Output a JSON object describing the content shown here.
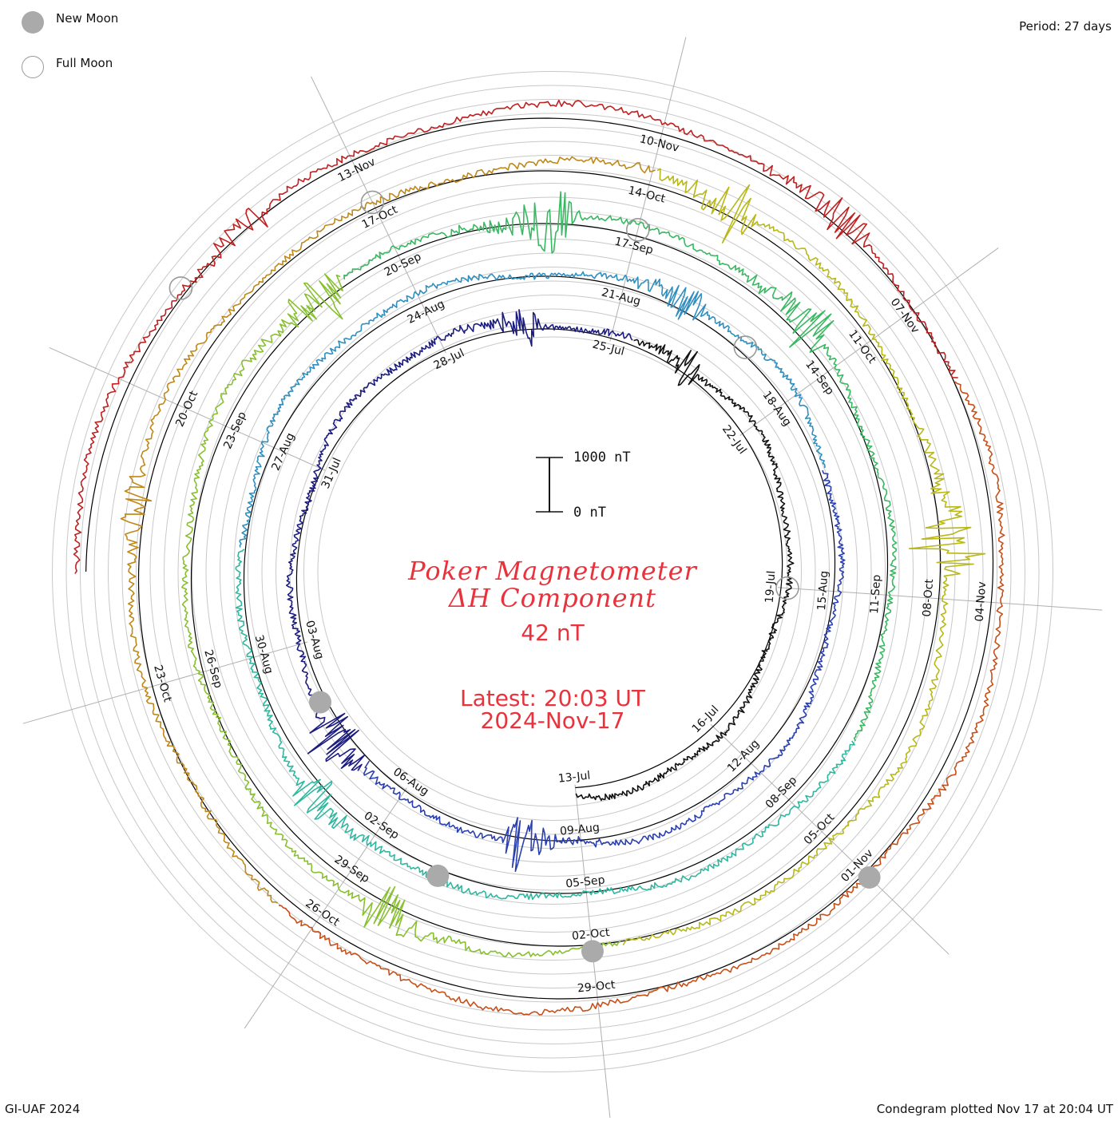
{
  "header": {
    "legend_new_moon": "New Moon",
    "legend_full_moon": "Full Moon",
    "period": "Period: 27 days"
  },
  "center": {
    "title_line1": "Poker Magnetometer",
    "title_line2": "ΔH Component",
    "current_value": "42 nT",
    "latest_label": "Latest: 20:03 UT",
    "latest_date": "2024-Nov-17"
  },
  "scale_bar": {
    "top_label": "1000 nT",
    "bottom_label": "0 nT"
  },
  "footer": {
    "credit": "GI-UAF 2024",
    "plotted": "Condegram plotted Nov 17 at 20:04 UT"
  },
  "colors": {
    "title": "#e8323c",
    "grid": "#c8c8c8",
    "spokes": "#b0b0b0",
    "baseline": "#000000",
    "moon_new": "#aaaaaa",
    "moon_full": "#999999"
  },
  "chart_data": {
    "type": "line",
    "period_days": 27,
    "start_date": "2024-Jul-13",
    "end_date": "2024-Nov-17",
    "scale_nT": [
      0,
      1000
    ],
    "latest_value_nT": 42,
    "rings": [
      {
        "labels": [
          "13-Jul",
          "16-Jul",
          "19-Jul",
          "22-Jul",
          "25-Jul",
          "28-Jul",
          "31-Jul",
          "03-Aug",
          "06-Aug"
        ],
        "color": "#111111"
      },
      {
        "labels": [
          "09-Aug",
          "12-Aug",
          "15-Aug",
          "18-Aug",
          "21-Aug",
          "24-Aug",
          "27-Aug",
          "30-Aug",
          "02-Sep"
        ],
        "color": "#2a2aa0"
      },
      {
        "labels": [
          "05-Sep",
          "08-Sep",
          "11-Sep",
          "14-Sep",
          "17-Sep",
          "20-Sep",
          "23-Sep",
          "26-Sep",
          "29-Sep"
        ],
        "color": "#2a8ab8"
      },
      {
        "labels": [
          "02-Oct",
          "05-Oct",
          "08-Oct",
          "11-Oct",
          "14-Oct",
          "17-Oct",
          "20-Oct",
          "23-Oct",
          "26-Oct"
        ],
        "color": "#3cb878"
      },
      {
        "labels": [
          "29-Oct",
          "01-Nov",
          "04-Nov",
          "07-Nov",
          "10-Nov",
          "13-Nov"
        ],
        "color": "#b8a020"
      }
    ],
    "segment_colors": [
      "#111111",
      "#1c1c80",
      "#2a40b0",
      "#2f8fc0",
      "#2fb8a0",
      "#38b860",
      "#88c030",
      "#b8b818",
      "#c08818",
      "#c85018",
      "#c02020"
    ],
    "new_moons": [
      "04-Aug",
      "03-Sep",
      "02-Oct",
      "01-Nov"
    ],
    "full_moons": [
      "19-Jul",
      "19-Aug",
      "17-Sep",
      "17-Oct",
      "15-Nov"
    ]
  }
}
